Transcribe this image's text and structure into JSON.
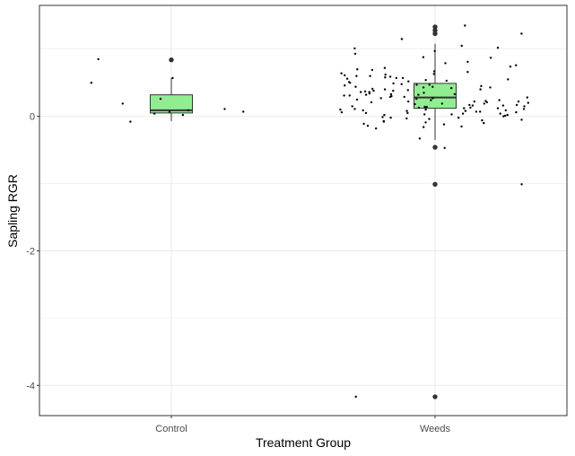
{
  "chart_data": {
    "type": "box",
    "title": "",
    "xlabel": "Treatment Group",
    "ylabel": "Sapling RGR",
    "categories": [
      "Control",
      "Weeds"
    ],
    "ylim": [
      -4.45,
      1.65
    ],
    "yticks": [
      -4,
      -2,
      0
    ],
    "ytick_labels": [
      "-4",
      "-2",
      "0"
    ],
    "grid": true,
    "colors": {
      "box_fill": "#90EE90",
      "border": "#333333",
      "points": "#000000",
      "grid": "#ebebeb",
      "background": "#ffffff"
    },
    "boxes": [
      {
        "category": "Control",
        "q1": 0.05,
        "median": 0.09,
        "q3": 0.32,
        "whisker_low": -0.07,
        "whisker_high": 0.57,
        "outliers": [
          0.84
        ]
      },
      {
        "category": "Weeds",
        "q1": 0.12,
        "median": 0.28,
        "q3": 0.49,
        "whisker_low": -0.35,
        "whisker_high": 1.08,
        "outliers": [
          1.33,
          1.28,
          1.23,
          -0.46,
          -1.01,
          -4.17
        ]
      }
    ],
    "jitter_points": [
      {
        "category": "Control",
        "values": [
          0.07,
          0.02,
          0.85,
          0.19,
          0.26,
          0.57,
          0.5,
          0.07,
          0.09,
          0.04,
          -0.08,
          0.11
        ]
      },
      {
        "category": "Weeds",
        "values": [
          1.35,
          1.01,
          0.97,
          0.72,
          0.81,
          0.6,
          0.53,
          0.44,
          0.38,
          0.31,
          0.22,
          0.15,
          0.09,
          0.03,
          -0.05,
          -0.18,
          -0.33,
          -0.47,
          0.66,
          0.49,
          0.41,
          0.28,
          0.14,
          0.02,
          -0.12,
          0.57,
          0.36,
          0.21,
          0.08,
          -0.03,
          0.93,
          0.76,
          0.62,
          0.55,
          0.47,
          0.4,
          0.33,
          0.26,
          0.19,
          0.12,
          0.05,
          -0.01,
          -0.09,
          0.7,
          0.51,
          0.32,
          0.17,
          0.04,
          1.23,
          1.15,
          0.88,
          0.67,
          0.43,
          0.24,
          0.1,
          -0.16,
          0.29,
          0.58,
          0.45,
          0.37,
          0.3,
          0.23,
          0.16,
          0.11,
          0.06,
          0.0,
          -0.06,
          1.05,
          0.79,
          0.61,
          0.48,
          0.39,
          0.27,
          0.18,
          0.13,
          0.07,
          -0.02,
          -1.01,
          0.64,
          0.52,
          0.42,
          0.35,
          0.25,
          0.2,
          0.14,
          0.09,
          0.03,
          -0.04,
          -0.11,
          0.87,
          0.74,
          0.59,
          0.46,
          0.34,
          0.22,
          0.16,
          0.08,
          0.01,
          -0.07,
          1.02,
          0.69,
          0.56,
          0.44,
          0.31,
          0.19,
          0.12,
          0.04,
          -0.14,
          0.63,
          0.5,
          0.38,
          0.27,
          0.15,
          0.05,
          -0.08,
          0.57,
          0.43,
          0.32,
          0.21,
          0.1,
          -0.02,
          0.6,
          0.47,
          0.36,
          0.24,
          0.13,
          0.06,
          -0.1,
          0.54,
          0.4,
          0.29,
          0.17,
          0.07,
          -0.15,
          0.33,
          0.22,
          0.11,
          0.02,
          -4.17
        ]
      }
    ]
  }
}
